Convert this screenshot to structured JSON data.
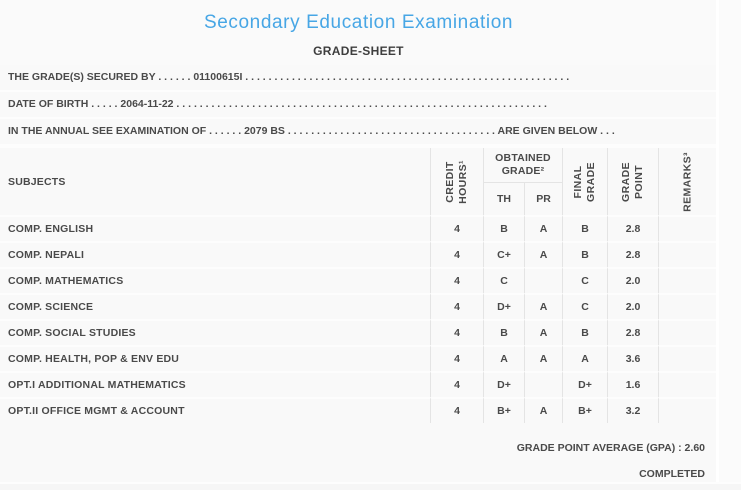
{
  "page": {
    "title": "Secondary Education Examination",
    "subtitle": "GRADE-SHEET"
  },
  "colors": {
    "title_accent": "#47a6e5",
    "body_text": "#4a4a4a",
    "background": "#f8f8f8",
    "grid_line": "#e4e4e4"
  },
  "info_lines": {
    "grades_secured_by": "THE GRADE(S) SECURED BY . . . . . . 01100615I . . . . . . . . . . . . . . . . . . . . . . . . . . . . . . . . . . . . . . . . . . . . . . . . . . . . . . . .",
    "date_of_birth": "DATE OF BIRTH . . . . . 2064-11-22 . . . . . . . . . . . . . . . . . . . . . . . . . . . . . . . . . . . . . . . . . . . . . . . . . . . . . . . . . . . . . . . .",
    "examination_of": "IN THE ANNUAL SEE EXAMINATION OF . . . . . . 2079 BS . . . . . . . . . . . . . . . . . . . . . . . . . . . . . . . . . . . . ARE GIVEN BELOW . . ."
  },
  "table": {
    "headers": {
      "subjects": "SUBJECTS",
      "credit_hours": "CREDIT\nHOURS¹",
      "obtained_grade": "OBTAINED\nGRADE²",
      "th": "TH",
      "pr": "PR",
      "final_grade": "FINAL\nGRADE",
      "grade_point": "GRADE\nPOINT",
      "remarks": "REMARKS³"
    },
    "rows": [
      {
        "subject": "COMP. ENGLISH",
        "credit_hours": "4",
        "th": "B",
        "pr": "A",
        "final_grade": "B",
        "grade_point": "2.8",
        "remarks": ""
      },
      {
        "subject": "COMP. NEPALI",
        "credit_hours": "4",
        "th": "C+",
        "pr": "A",
        "final_grade": "B",
        "grade_point": "2.8",
        "remarks": ""
      },
      {
        "subject": "COMP. MATHEMATICS",
        "credit_hours": "4",
        "th": "C",
        "pr": "",
        "final_grade": "C",
        "grade_point": "2.0",
        "remarks": ""
      },
      {
        "subject": "COMP. SCIENCE",
        "credit_hours": "4",
        "th": "D+",
        "pr": "A",
        "final_grade": "C",
        "grade_point": "2.0",
        "remarks": ""
      },
      {
        "subject": "COMP. SOCIAL STUDIES",
        "credit_hours": "4",
        "th": "B",
        "pr": "A",
        "final_grade": "B",
        "grade_point": "2.8",
        "remarks": ""
      },
      {
        "subject": "COMP. HEALTH, POP & ENV EDU",
        "credit_hours": "4",
        "th": "A",
        "pr": "A",
        "final_grade": "A",
        "grade_point": "3.6",
        "remarks": ""
      },
      {
        "subject": "OPT.I ADDITIONAL MATHEMATICS",
        "credit_hours": "4",
        "th": "D+",
        "pr": "",
        "final_grade": "D+",
        "grade_point": "1.6",
        "remarks": ""
      },
      {
        "subject": "OPT.II OFFICE MGMT & ACCOUNT",
        "credit_hours": "4",
        "th": "B+",
        "pr": "A",
        "final_grade": "B+",
        "grade_point": "3.2",
        "remarks": ""
      }
    ]
  },
  "footer": {
    "gpa_line": "GRADE POINT AVERAGE (GPA) : 2.60",
    "status": "COMPLETED"
  }
}
